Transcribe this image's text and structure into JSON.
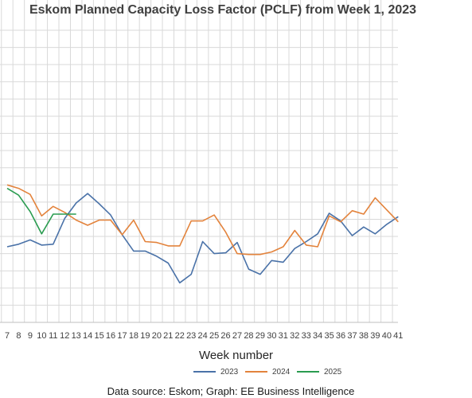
{
  "chart_data": {
    "type": "line",
    "title": "Eskom Planned Capacity Loss Factor (PCLF) from Week 1, 2023",
    "xlabel": "Week number",
    "ylabel": "",
    "categories": [
      "7",
      "8",
      "9",
      "10",
      "11",
      "12",
      "13",
      "14",
      "15",
      "16",
      "17",
      "18",
      "19",
      "20",
      "21",
      "22",
      "23",
      "24",
      "25",
      "26",
      "27",
      "28",
      "29",
      "30",
      "31",
      "32",
      "33",
      "34",
      "35",
      "36",
      "37",
      "38",
      "39",
      "40",
      "41"
    ],
    "series": [
      {
        "name": "2023",
        "color": "#4a72a8",
        "values": [
          4.8,
          5.1,
          5.6,
          5.0,
          5.1,
          8.1,
          9.9,
          11.0,
          9.8,
          8.5,
          6.2,
          4.3,
          4.3,
          3.7,
          2.9,
          0.6,
          1.6,
          5.4,
          4.0,
          4.1,
          5.3,
          2.2,
          1.6,
          3.2,
          3.0,
          4.6,
          5.4,
          6.3,
          8.7,
          7.8,
          6.1,
          7.1,
          6.3,
          7.4,
          8.3
        ]
      },
      {
        "name": "2024",
        "color": "#e3833c",
        "values": [
          12.0,
          11.6,
          10.9,
          8.4,
          9.5,
          8.8,
          7.9,
          7.3,
          7.9,
          7.9,
          6.2,
          7.9,
          5.4,
          5.3,
          4.9,
          4.9,
          7.8,
          7.8,
          8.5,
          6.5,
          4.0,
          3.9,
          3.9,
          4.2,
          4.8,
          6.7,
          5.0,
          4.8,
          8.4,
          7.7,
          9.0,
          8.6,
          10.5,
          9.1,
          7.7
        ]
      },
      {
        "name": "2025",
        "color": "#2a9c50",
        "values": [
          11.6,
          10.8,
          8.9,
          6.3,
          8.6,
          8.6,
          8.6,
          null,
          null,
          null,
          null,
          null,
          null,
          null,
          null,
          null,
          null,
          null,
          null,
          null,
          null,
          null,
          null,
          null,
          null,
          null,
          null,
          null,
          null,
          null,
          null,
          null,
          null,
          null,
          null
        ]
      }
    ],
    "ylim": [
      -4,
      30
    ],
    "grid": true,
    "legend_position": "bottom"
  },
  "footer": {
    "source": "Data source: Eskom; Graph: EE Business Intelligence"
  }
}
